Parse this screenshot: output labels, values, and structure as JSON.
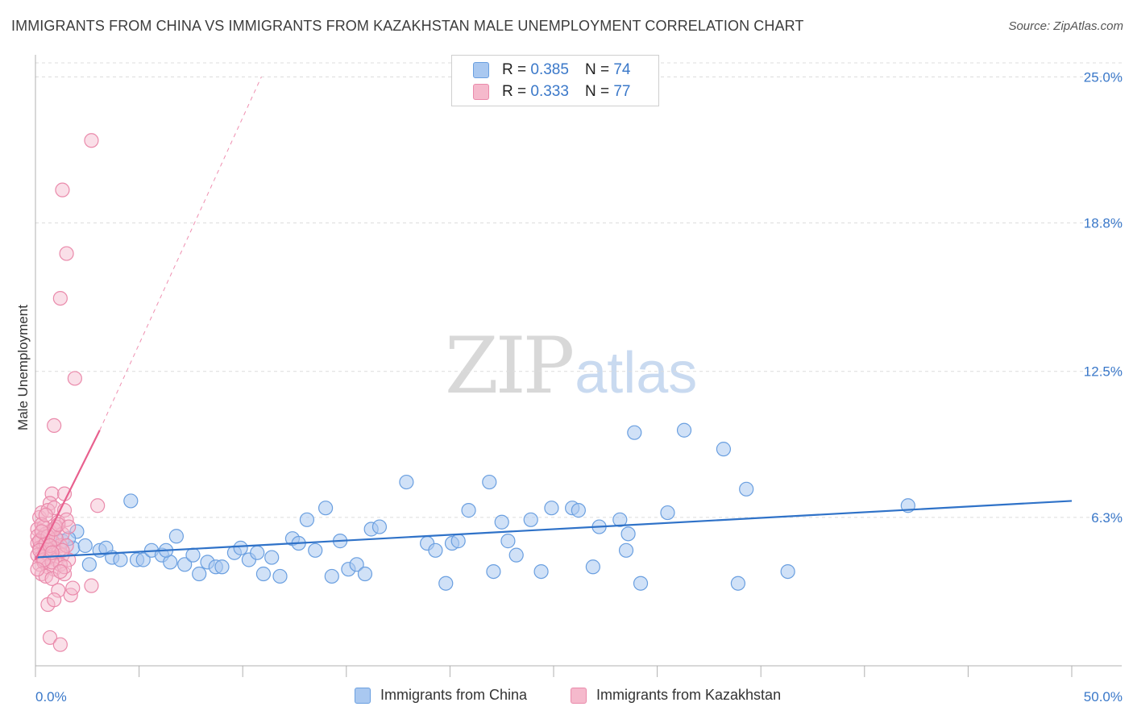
{
  "header": {
    "title": "IMMIGRANTS FROM CHINA VS IMMIGRANTS FROM KAZAKHSTAN MALE UNEMPLOYMENT CORRELATION CHART",
    "source": "Source: ZipAtlas.com"
  },
  "watermark": {
    "zip": "ZIP",
    "atlas": "atlas"
  },
  "legend": {
    "r_label": "R =",
    "n_label": "N =",
    "china": {
      "r": "0.385",
      "n": "74"
    },
    "kazakhstan": {
      "r": "0.333",
      "n": "77"
    }
  },
  "colors": {
    "china_fill": "#a9c8f0",
    "china_stroke": "#6a9fe0",
    "china_line": "#2f72c8",
    "kaz_fill": "#f5b9cc",
    "kaz_stroke": "#ea8aab",
    "kaz_line": "#e8608e",
    "tick_text": "#3a78c9"
  },
  "chart_data": {
    "type": "scatter",
    "title": "IMMIGRANTS FROM CHINA VS IMMIGRANTS FROM KAZAKHSTAN MALE UNEMPLOYMENT CORRELATION CHART",
    "xlabel": "",
    "ylabel": "Male Unemployment",
    "xlim": [
      0,
      50
    ],
    "ylim": [
      0,
      25.8
    ],
    "x_tick_labels": [
      "0.0%",
      "50.0%"
    ],
    "y_ticks": [
      6.3,
      12.5,
      18.8,
      25.0
    ],
    "y_tick_labels": [
      "6.3%",
      "12.5%",
      "18.8%",
      "25.0%"
    ],
    "grid": true,
    "legend_position": "top-center",
    "series": [
      {
        "name": "Immigrants from China",
        "r": 0.385,
        "n": 74,
        "trend": {
          "x0": 0,
          "y0": 4.6,
          "x1": 50,
          "y1": 7.0
        },
        "points": [
          [
            1.3,
            5.3
          ],
          [
            1.8,
            5.0
          ],
          [
            2.6,
            4.3
          ],
          [
            3.1,
            4.9
          ],
          [
            3.4,
            5.0
          ],
          [
            3.7,
            4.6
          ],
          [
            4.1,
            4.5
          ],
          [
            4.6,
            7.0
          ],
          [
            4.9,
            4.5
          ],
          [
            5.2,
            4.5
          ],
          [
            5.6,
            4.9
          ],
          [
            6.1,
            4.7
          ],
          [
            6.5,
            4.4
          ],
          [
            6.8,
            5.5
          ],
          [
            7.2,
            4.3
          ],
          [
            7.6,
            4.7
          ],
          [
            7.9,
            3.9
          ],
          [
            8.3,
            4.4
          ],
          [
            8.7,
            4.2
          ],
          [
            9.0,
            4.2
          ],
          [
            9.6,
            4.8
          ],
          [
            9.9,
            5.0
          ],
          [
            10.3,
            4.5
          ],
          [
            10.7,
            4.8
          ],
          [
            11.0,
            3.9
          ],
          [
            11.4,
            4.6
          ],
          [
            11.8,
            3.8
          ],
          [
            12.4,
            5.4
          ],
          [
            12.7,
            5.2
          ],
          [
            13.1,
            6.2
          ],
          [
            13.5,
            4.9
          ],
          [
            14.0,
            6.7
          ],
          [
            14.3,
            3.8
          ],
          [
            14.7,
            5.3
          ],
          [
            15.1,
            4.1
          ],
          [
            15.5,
            4.3
          ],
          [
            15.9,
            3.9
          ],
          [
            16.2,
            5.8
          ],
          [
            16.6,
            5.9
          ],
          [
            17.9,
            7.8
          ],
          [
            18.9,
            5.2
          ],
          [
            19.3,
            4.9
          ],
          [
            19.8,
            3.5
          ],
          [
            20.1,
            5.2
          ],
          [
            20.4,
            5.3
          ],
          [
            20.9,
            6.6
          ],
          [
            21.9,
            7.8
          ],
          [
            22.1,
            4.0
          ],
          [
            22.5,
            6.1
          ],
          [
            22.8,
            5.3
          ],
          [
            23.2,
            4.7
          ],
          [
            23.9,
            6.2
          ],
          [
            24.4,
            4.0
          ],
          [
            24.9,
            6.7
          ],
          [
            25.9,
            6.7
          ],
          [
            26.2,
            6.6
          ],
          [
            26.9,
            4.2
          ],
          [
            27.2,
            5.9
          ],
          [
            28.2,
            6.2
          ],
          [
            28.5,
            4.9
          ],
          [
            28.6,
            5.6
          ],
          [
            28.9,
            9.9
          ],
          [
            29.2,
            3.5
          ],
          [
            30.5,
            6.5
          ],
          [
            31.3,
            10.0
          ],
          [
            33.2,
            9.2
          ],
          [
            33.9,
            3.5
          ],
          [
            34.3,
            7.5
          ],
          [
            36.3,
            4.0
          ],
          [
            42.1,
            6.8
          ],
          [
            2.0,
            5.7
          ],
          [
            2.4,
            5.1
          ],
          [
            1.6,
            5.4
          ],
          [
            6.3,
            4.9
          ]
        ]
      },
      {
        "name": "Immigrants from Kazakhstan",
        "r": 0.333,
        "n": 77,
        "trend": {
          "x0": 0,
          "y0": 4.5,
          "x1": 3.1,
          "y1": 10.0,
          "dashed_x1": 10.9,
          "dashed_y1": 25.0
        },
        "points": [
          [
            2.7,
            22.3
          ],
          [
            1.3,
            20.2
          ],
          [
            1.5,
            17.5
          ],
          [
            1.2,
            15.6
          ],
          [
            1.9,
            12.2
          ],
          [
            0.9,
            10.2
          ],
          [
            3.0,
            6.8
          ],
          [
            0.8,
            7.3
          ],
          [
            1.4,
            7.3
          ],
          [
            0.7,
            6.9
          ],
          [
            0.2,
            6.3
          ],
          [
            0.3,
            6.5
          ],
          [
            0.6,
            6.6
          ],
          [
            0.9,
            6.7
          ],
          [
            1.1,
            6.1
          ],
          [
            1.4,
            6.6
          ],
          [
            1.5,
            6.2
          ],
          [
            0.1,
            5.8
          ],
          [
            0.4,
            5.9
          ],
          [
            0.7,
            5.7
          ],
          [
            1.0,
            5.9
          ],
          [
            1.3,
            5.6
          ],
          [
            0.1,
            5.5
          ],
          [
            0.3,
            5.4
          ],
          [
            0.5,
            5.6
          ],
          [
            0.8,
            5.3
          ],
          [
            1.2,
            5.1
          ],
          [
            0.1,
            5.2
          ],
          [
            0.2,
            5.0
          ],
          [
            0.4,
            5.1
          ],
          [
            0.6,
            4.9
          ],
          [
            0.9,
            5.0
          ],
          [
            1.1,
            4.8
          ],
          [
            0.1,
            4.7
          ],
          [
            0.3,
            4.6
          ],
          [
            0.5,
            4.8
          ],
          [
            0.7,
            4.6
          ],
          [
            1.0,
            4.5
          ],
          [
            1.3,
            4.7
          ],
          [
            1.6,
            4.5
          ],
          [
            0.2,
            4.3
          ],
          [
            0.4,
            4.4
          ],
          [
            0.6,
            4.2
          ],
          [
            0.9,
            4.1
          ],
          [
            1.2,
            4.3
          ],
          [
            0.3,
            3.9
          ],
          [
            0.5,
            3.8
          ],
          [
            0.8,
            3.7
          ],
          [
            1.1,
            3.2
          ],
          [
            1.4,
            3.9
          ],
          [
            1.7,
            3.0
          ],
          [
            0.6,
            2.6
          ],
          [
            0.9,
            2.8
          ],
          [
            1.8,
            3.3
          ],
          [
            2.7,
            3.4
          ],
          [
            0.7,
            1.2
          ],
          [
            1.2,
            0.9
          ],
          [
            0.2,
            5.3
          ],
          [
            0.5,
            5.2
          ],
          [
            0.8,
            4.4
          ],
          [
            1.0,
            5.4
          ],
          [
            1.5,
            5.1
          ],
          [
            0.3,
            6.0
          ],
          [
            0.6,
            5.5
          ],
          [
            0.9,
            5.8
          ],
          [
            1.3,
            4.9
          ],
          [
            0.4,
            4.5
          ],
          [
            0.2,
            4.9
          ],
          [
            0.7,
            5.1
          ],
          [
            1.1,
            6.0
          ],
          [
            0.5,
            6.4
          ],
          [
            0.8,
            4.8
          ],
          [
            1.4,
            4.2
          ],
          [
            1.6,
            5.9
          ],
          [
            0.1,
            4.1
          ],
          [
            0.3,
            5.7
          ],
          [
            1.2,
            4.0
          ]
        ]
      }
    ]
  },
  "bottom_legend": {
    "china_label": "Immigrants from China",
    "kaz_label": "Immigrants from Kazakhstan"
  }
}
